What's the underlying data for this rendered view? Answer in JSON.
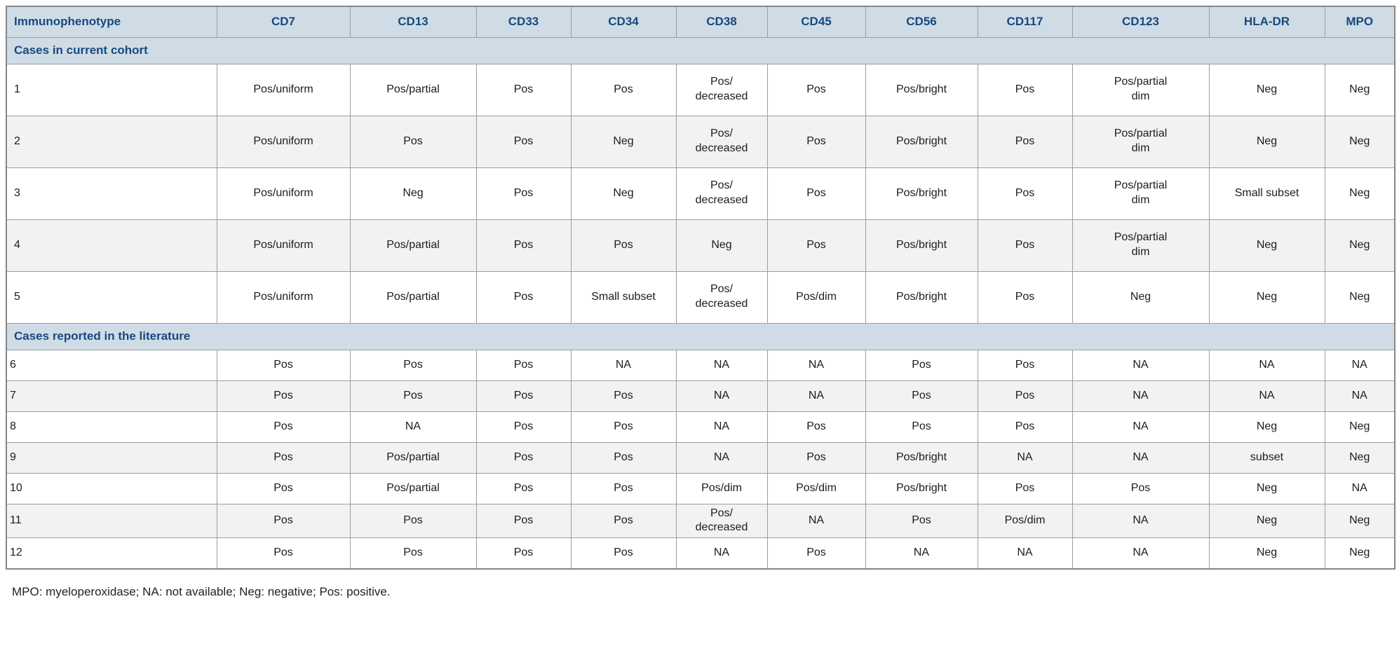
{
  "table": {
    "columns": [
      "Immunophenotype",
      "CD7",
      "CD13",
      "CD33",
      "CD34",
      "CD38",
      "CD45",
      "CD56",
      "CD117",
      "CD123",
      "HLA-DR",
      "MPO"
    ],
    "sections": [
      {
        "title": "Cases in current cohort",
        "rows": [
          [
            "1",
            "Pos/uniform",
            "Pos/partial",
            "Pos",
            "Pos",
            "Pos/\ndecreased",
            "Pos",
            "Pos/bright",
            "Pos",
            "Pos/partial\ndim",
            "Neg",
            "Neg"
          ],
          [
            "2",
            "Pos/uniform",
            "Pos",
            "Pos",
            "Neg",
            "Pos/\ndecreased",
            "Pos",
            "Pos/bright",
            "Pos",
            "Pos/partial\ndim",
            "Neg",
            "Neg"
          ],
          [
            "3",
            "Pos/uniform",
            "Neg",
            "Pos",
            "Neg",
            "Pos/\ndecreased",
            "Pos",
            "Pos/bright",
            "Pos",
            "Pos/partial\ndim",
            "Small subset",
            "Neg"
          ],
          [
            "4",
            "Pos/uniform",
            "Pos/partial",
            "Pos",
            "Pos",
            "Neg",
            "Pos",
            "Pos/bright",
            "Pos",
            "Pos/partial\ndim",
            "Neg",
            "Neg"
          ],
          [
            "5",
            "Pos/uniform",
            "Pos/partial",
            "Pos",
            "Small subset",
            "Pos/\ndecreased",
            "Pos/dim",
            "Pos/bright",
            "Pos",
            "Neg",
            "Neg",
            "Neg"
          ]
        ]
      },
      {
        "title": "Cases reported in the literature",
        "rows": [
          [
            "6",
            "Pos",
            "Pos",
            "Pos",
            "NA",
            "NA",
            "NA",
            "Pos",
            "Pos",
            "NA",
            "NA",
            "NA"
          ],
          [
            "7",
            "Pos",
            "Pos",
            "Pos",
            "Pos",
            "NA",
            "NA",
            "Pos",
            "Pos",
            "NA",
            "NA",
            "NA"
          ],
          [
            "8",
            "Pos",
            "NA",
            "Pos",
            "Pos",
            "NA",
            "Pos",
            "Pos",
            "Pos",
            "NA",
            "Neg",
            "Neg"
          ],
          [
            "9",
            "Pos",
            "Pos/partial",
            "Pos",
            "Pos",
            "NA",
            "Pos",
            "Pos/bright",
            "NA",
            "NA",
            "subset",
            "Neg"
          ],
          [
            "10",
            "Pos",
            "Pos/partial",
            "Pos",
            "Pos",
            "Pos/dim",
            "Pos/dim",
            "Pos/bright",
            "Pos",
            "Pos",
            "Neg",
            "NA"
          ],
          [
            "11",
            "Pos",
            "Pos",
            "Pos",
            "Pos",
            "Pos/\ndecreased",
            "NA",
            "Pos",
            "Pos/dim",
            "NA",
            "Neg",
            "Neg"
          ],
          [
            "12",
            "Pos",
            "Pos",
            "Pos",
            "Pos",
            "NA",
            "Pos",
            "NA",
            "NA",
            "NA",
            "Neg",
            "Neg"
          ]
        ]
      }
    ]
  },
  "footnote": "MPO: myeloperoxidase; NA: not available; Neg: negative; Pos: positive.",
  "colors": {
    "header_bg": "#cfdce6",
    "header_text": "#17497e",
    "stripe": "#f2f2f2",
    "border": "#9d9d9d"
  }
}
